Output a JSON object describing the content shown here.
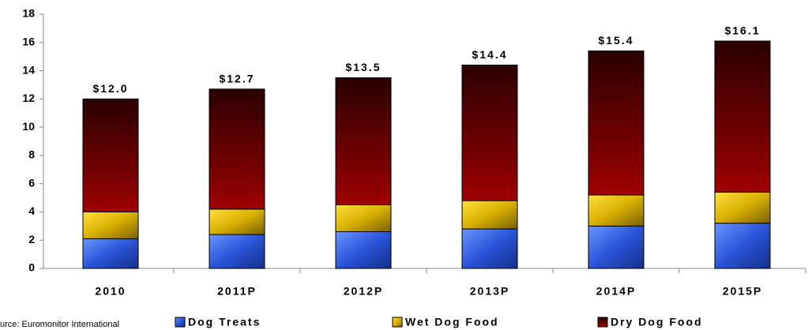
{
  "chart_data": {
    "type": "stacked_bar",
    "categories": [
      "2010",
      "2011P",
      "2012P",
      "2013P",
      "2014P",
      "2015P"
    ],
    "series": [
      {
        "name": "Dog Treats",
        "color": "#2a55d8",
        "values": [
          2.1,
          2.4,
          2.6,
          2.8,
          3.0,
          3.2
        ]
      },
      {
        "name": "Wet Dog Food",
        "color": "#d8b000",
        "values": [
          1.9,
          1.8,
          1.9,
          2.0,
          2.2,
          2.2
        ]
      },
      {
        "name": "Dry Dog Food",
        "color": "#7a0000",
        "values": [
          8.0,
          8.5,
          9.0,
          9.6,
          10.2,
          10.7
        ]
      }
    ],
    "totals": [
      12.0,
      12.7,
      13.5,
      14.4,
      15.4,
      16.1
    ],
    "total_labels": [
      "$12.0",
      "$12.7",
      "$13.5",
      "$14.4",
      "$15.4",
      "$16.1"
    ],
    "ylim": [
      0,
      18
    ],
    "yticks": [
      0,
      2,
      4,
      6,
      8,
      10,
      12,
      14,
      16,
      18
    ],
    "source": "urce: Euromonitor International"
  }
}
